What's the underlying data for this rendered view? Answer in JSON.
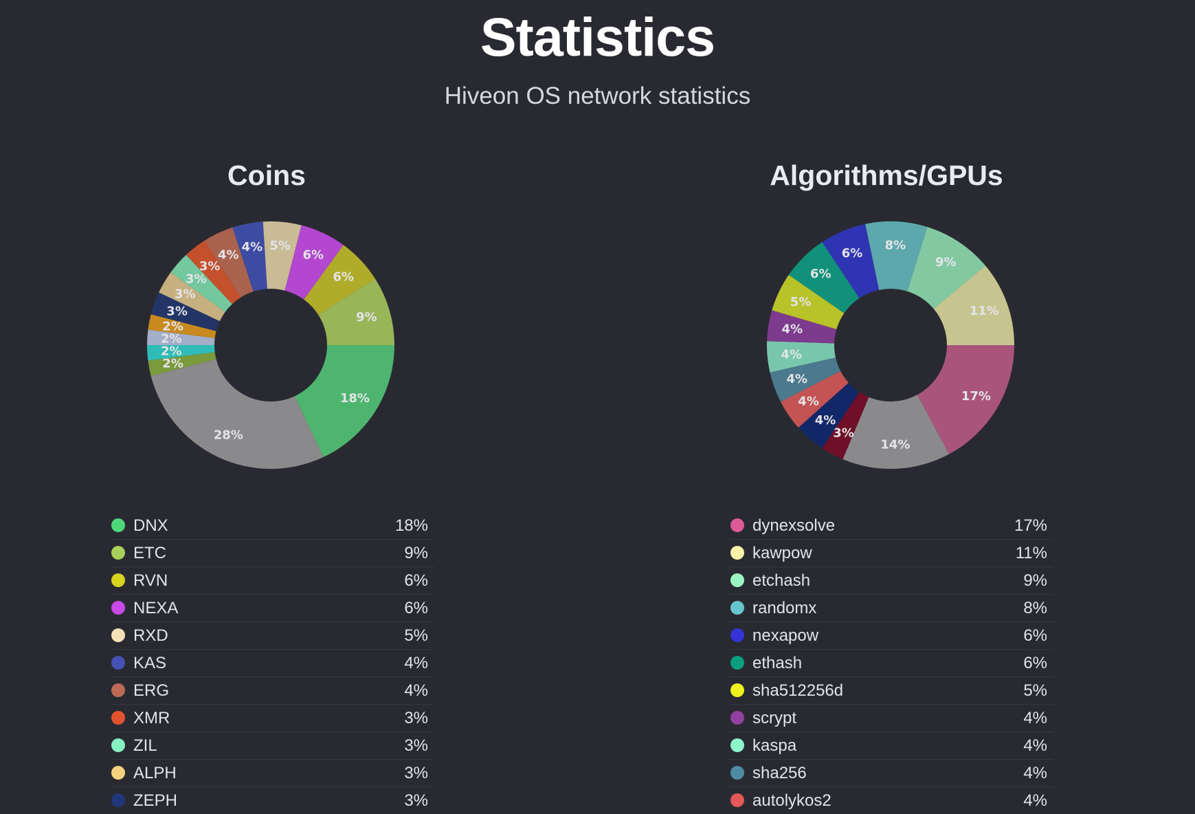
{
  "title": "Statistics",
  "subtitle": "Hiveon OS network statistics",
  "coins": {
    "title": "Coins"
  },
  "algorithms": {
    "title": "Algorithms/GPUs"
  },
  "chart_data": [
    {
      "type": "pie",
      "title": "Coins",
      "donut": true,
      "slices": [
        {
          "value": 18,
          "label": "18%",
          "color": "#4db56d"
        },
        {
          "value": 28,
          "label": "28%",
          "color": "#8a8a8c"
        },
        {
          "value": 2,
          "label": "2%",
          "color": "#7a9a3c"
        },
        {
          "value": 2,
          "label": "2%",
          "color": "#2fbcb6"
        },
        {
          "value": 2,
          "label": "2%",
          "color": "#a3aec8"
        },
        {
          "value": 2,
          "label": "2%",
          "color": "#c88a1e"
        },
        {
          "value": 3,
          "label": "3%",
          "color": "#223566"
        },
        {
          "value": 3,
          "label": "3%",
          "color": "#c6b080"
        },
        {
          "value": 3,
          "label": "3%",
          "color": "#74c89e"
        },
        {
          "value": 3,
          "label": "3%",
          "color": "#c5502c"
        },
        {
          "value": 4,
          "label": "4%",
          "color": "#a9624e"
        },
        {
          "value": 4,
          "label": "4%",
          "color": "#3e4ba2"
        },
        {
          "value": 5,
          "label": "5%",
          "color": "#c9bb96"
        },
        {
          "value": 6,
          "label": "6%",
          "color": "#b347cf"
        },
        {
          "value": 6,
          "label": "6%",
          "color": "#b0ac2a"
        },
        {
          "value": 9,
          "label": "9%",
          "color": "#98b558"
        }
      ],
      "legend": [
        {
          "name": "DNX",
          "value": "18%",
          "color": "#4fd77c"
        },
        {
          "name": "ETC",
          "value": "9%",
          "color": "#a8cf5a"
        },
        {
          "name": "RVN",
          "value": "6%",
          "color": "#d7d31f"
        },
        {
          "name": "NEXA",
          "value": "6%",
          "color": "#c94ae8"
        },
        {
          "name": "RXD",
          "value": "5%",
          "color": "#f4e2b6"
        },
        {
          "name": "KAS",
          "value": "4%",
          "color": "#4452b3"
        },
        {
          "name": "ERG",
          "value": "4%",
          "color": "#bd6a55"
        },
        {
          "name": "XMR",
          "value": "3%",
          "color": "#e2542f"
        },
        {
          "name": "ZIL",
          "value": "3%",
          "color": "#86f1c0"
        },
        {
          "name": "ALPH",
          "value": "3%",
          "color": "#f6d17f"
        },
        {
          "name": "ZEPH",
          "value": "3%",
          "color": "#22377a"
        }
      ]
    },
    {
      "type": "pie",
      "title": "Algorithms/GPUs",
      "donut": true,
      "slices": [
        {
          "value": 17,
          "label": "17%",
          "color": "#a9557b"
        },
        {
          "value": 14,
          "label": "14%",
          "color": "#8a8a8c"
        },
        {
          "value": 3,
          "label": "3%",
          "color": "#6f0f28"
        },
        {
          "value": 4,
          "label": "4%",
          "color": "#122768"
        },
        {
          "value": 4,
          "label": "4%",
          "color": "#c45454"
        },
        {
          "value": 4,
          "label": "4%",
          "color": "#4b798d"
        },
        {
          "value": 4,
          "label": "4%",
          "color": "#78c7ad"
        },
        {
          "value": 4,
          "label": "4%",
          "color": "#7e3b8d"
        },
        {
          "value": 5,
          "label": "5%",
          "color": "#b8c229"
        },
        {
          "value": 6,
          "label": "6%",
          "color": "#11917a"
        },
        {
          "value": 6,
          "label": "6%",
          "color": "#2e34b2"
        },
        {
          "value": 8,
          "label": "8%",
          "color": "#5ca8ac"
        },
        {
          "value": 9,
          "label": "9%",
          "color": "#82c9a2"
        },
        {
          "value": 11,
          "label": "11%",
          "color": "#c7c58f"
        }
      ],
      "legend": [
        {
          "name": "dynexsolve",
          "value": "17%",
          "color": "#dd5b96"
        },
        {
          "name": "kawpow",
          "value": "11%",
          "color": "#f8f3a8"
        },
        {
          "name": "etchash",
          "value": "9%",
          "color": "#9bf5c2"
        },
        {
          "name": "randomx",
          "value": "8%",
          "color": "#66c6ce"
        },
        {
          "name": "nexapow",
          "value": "6%",
          "color": "#3533d6"
        },
        {
          "name": "ethash",
          "value": "6%",
          "color": "#0aa07f"
        },
        {
          "name": "sha512256d",
          "value": "5%",
          "color": "#eff21c"
        },
        {
          "name": "scrypt",
          "value": "4%",
          "color": "#90419f"
        },
        {
          "name": "kaspa",
          "value": "4%",
          "color": "#8ef4cc"
        },
        {
          "name": "sha256",
          "value": "4%",
          "color": "#4f8ba3"
        },
        {
          "name": "autolykos2",
          "value": "4%",
          "color": "#e55858"
        }
      ]
    }
  ]
}
